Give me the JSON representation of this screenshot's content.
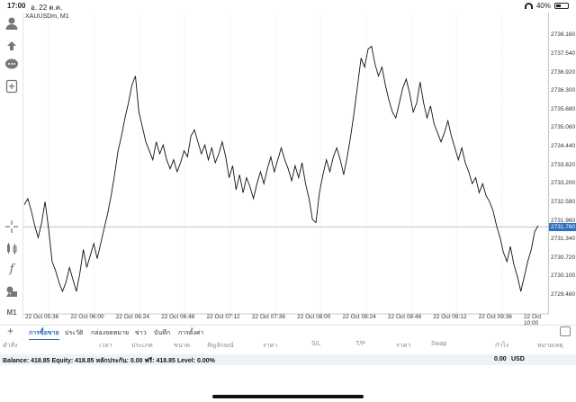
{
  "status": {
    "time": "17:00",
    "date": "อ. 22 ต.ค.",
    "battery": "40%"
  },
  "chart": {
    "symbol": "XAUUSDm, M1",
    "current_price": "2731.760",
    "line_color": "#111111",
    "grid_color": "#d9d9d9",
    "accent": "#2d6fc0"
  },
  "chart_data": {
    "type": "line",
    "ylim": [
      2729.0,
      2738.5
    ],
    "y_ticks": [
      "2738.160",
      "2737.540",
      "2736.920",
      "2736.300",
      "2735.680",
      "2735.060",
      "2734.440",
      "2733.820",
      "2733.200",
      "2732.580",
      "2731.960",
      "2731.340",
      "2730.720",
      "2730.100",
      "2729.480"
    ],
    "x_ticks": [
      "22 Oct 05:36",
      "22 Oct 06:00",
      "22 Oct 06:24",
      "22 Oct 06:48",
      "22 Oct 07:12",
      "22 Oct 07:36",
      "22 Oct 08:00",
      "22 Oct 08:24",
      "22 Oct 08:48",
      "22 Oct 09:12",
      "22 Oct 09:36",
      "22 Oct 10:00"
    ],
    "series": [
      {
        "values": [
          2732.5,
          2732.7,
          2732.3,
          2731.8,
          2731.4,
          2731.9,
          2732.6,
          2731.7,
          2730.6,
          2730.3,
          2729.9,
          2729.6,
          2729.9,
          2730.4,
          2730.0,
          2729.6,
          2730.2,
          2731.0,
          2730.4,
          2730.8,
          2731.2,
          2730.7,
          2731.2,
          2731.7,
          2732.2,
          2732.8,
          2733.5,
          2734.3,
          2734.8,
          2735.4,
          2735.9,
          2736.5,
          2736.8,
          2735.6,
          2735.1,
          2734.6,
          2734.3,
          2734.0,
          2734.6,
          2734.2,
          2734.5,
          2734.0,
          2733.7,
          2734.0,
          2733.6,
          2733.9,
          2734.3,
          2734.1,
          2734.8,
          2735.0,
          2734.6,
          2734.2,
          2734.5,
          2734.0,
          2734.4,
          2733.9,
          2734.2,
          2734.6,
          2734.1,
          2733.4,
          2733.8,
          2733.0,
          2733.5,
          2732.9,
          2733.4,
          2733.1,
          2732.7,
          2733.2,
          2733.6,
          2733.2,
          2733.7,
          2734.1,
          2733.6,
          2734.0,
          2734.4,
          2734.0,
          2733.7,
          2733.3,
          2733.8,
          2733.4,
          2733.9,
          2733.2,
          2732.7,
          2732.0,
          2731.9,
          2732.9,
          2733.5,
          2734.0,
          2733.6,
          2734.1,
          2734.4,
          2734.0,
          2733.5,
          2734.1,
          2734.8,
          2735.6,
          2736.5,
          2737.4,
          2737.1,
          2737.7,
          2737.8,
          2737.2,
          2736.8,
          2737.1,
          2736.5,
          2736.0,
          2735.6,
          2735.4,
          2735.9,
          2736.4,
          2736.7,
          2736.2,
          2735.6,
          2735.9,
          2736.6,
          2735.9,
          2735.4,
          2735.8,
          2735.2,
          2734.9,
          2734.6,
          2734.9,
          2735.3,
          2734.8,
          2734.4,
          2734.0,
          2734.4,
          2733.9,
          2733.6,
          2733.2,
          2733.4,
          2732.9,
          2733.2,
          2732.8,
          2732.6,
          2732.3,
          2731.8,
          2731.4,
          2730.9,
          2730.6,
          2731.1,
          2730.5,
          2730.1,
          2729.6,
          2730.1,
          2730.6,
          2731.0,
          2731.6,
          2731.8
        ]
      }
    ]
  },
  "tabs": [
    {
      "label": "การซื้อขาย",
      "active": true
    },
    {
      "label": "ประวัติ",
      "active": false
    },
    {
      "label": "กล่องจดหมาย",
      "active": false
    },
    {
      "label": "ข่าว",
      "active": false
    },
    {
      "label": "บันทึก",
      "active": false
    },
    {
      "label": "การตั้งค่า",
      "active": false
    }
  ],
  "columns": [
    "คำสั่ง",
    "เวลา",
    "ประเภท",
    "ขนาด",
    "สัญลักษณ์",
    "ราคา",
    "S/L",
    "T/P",
    "ราคา",
    "Swap",
    "กำไร",
    "หมายเหตุ"
  ],
  "account": {
    "summary": "Balance: 418.85 Equity: 418.85 หลักประกัน: 0.00 ฟรี: 418.85 Level: 0.00%",
    "profit": "0.00",
    "currency": "USD"
  }
}
